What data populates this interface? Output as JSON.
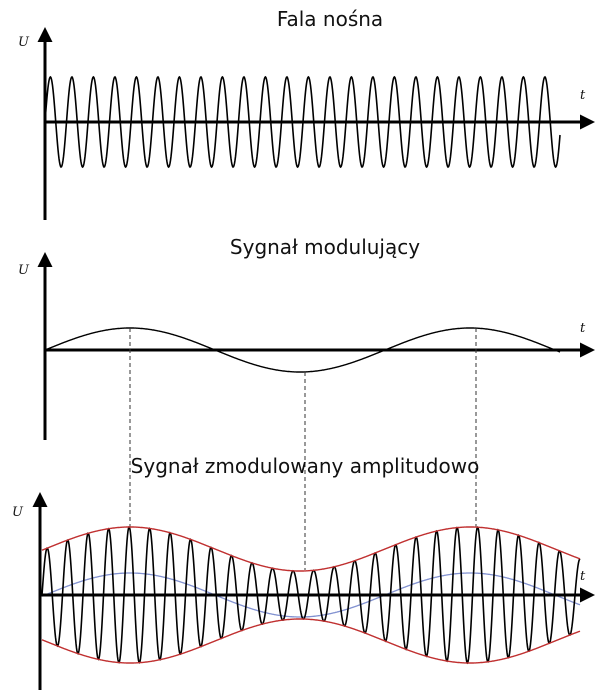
{
  "panels": [
    {
      "title": "Fala nośna",
      "y_label": "U",
      "x_label": "t"
    },
    {
      "title": "Sygnał modulujący",
      "y_label": "U",
      "x_label": "t"
    },
    {
      "title": "Sygnał zmodulowany amplitudowo",
      "y_label": "U",
      "x_label": "t"
    }
  ]
}
